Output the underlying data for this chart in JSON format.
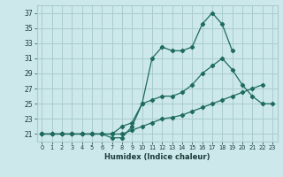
{
  "xlabel": "Humidex (Indice chaleur)",
  "x_values": [
    0,
    1,
    2,
    3,
    4,
    5,
    6,
    7,
    8,
    9,
    10,
    11,
    12,
    13,
    14,
    15,
    16,
    17,
    18,
    19,
    20,
    21,
    22,
    23
  ],
  "line1": [
    21,
    21,
    21,
    21,
    21,
    21,
    21,
    21,
    21,
    21.5,
    22,
    22.5,
    23,
    23.2,
    23.5,
    24,
    24.5,
    25,
    25.5,
    26,
    26.5,
    27,
    27.5,
    null
  ],
  "line2": [
    21,
    21,
    21,
    21,
    21,
    21,
    21,
    21,
    22,
    22.5,
    25,
    25.5,
    26,
    26,
    26.5,
    27.5,
    29,
    30,
    31,
    29.5,
    27.5,
    26,
    25,
    25
  ],
  "line3": [
    21,
    21,
    21,
    21,
    21,
    21,
    21,
    20.5,
    20.5,
    22,
    25,
    31,
    32.5,
    32,
    32,
    32.5,
    35.5,
    37,
    35.5,
    32,
    null,
    null,
    null,
    null
  ],
  "bg_color": "#cce8ea",
  "grid_color": "#aacccc",
  "line_color": "#1e6b5e",
  "yticks": [
    21,
    23,
    25,
    27,
    29,
    31,
    33,
    35,
    37
  ],
  "ylim": [
    20.0,
    38.0
  ],
  "xlim": [
    -0.5,
    23.5
  ]
}
